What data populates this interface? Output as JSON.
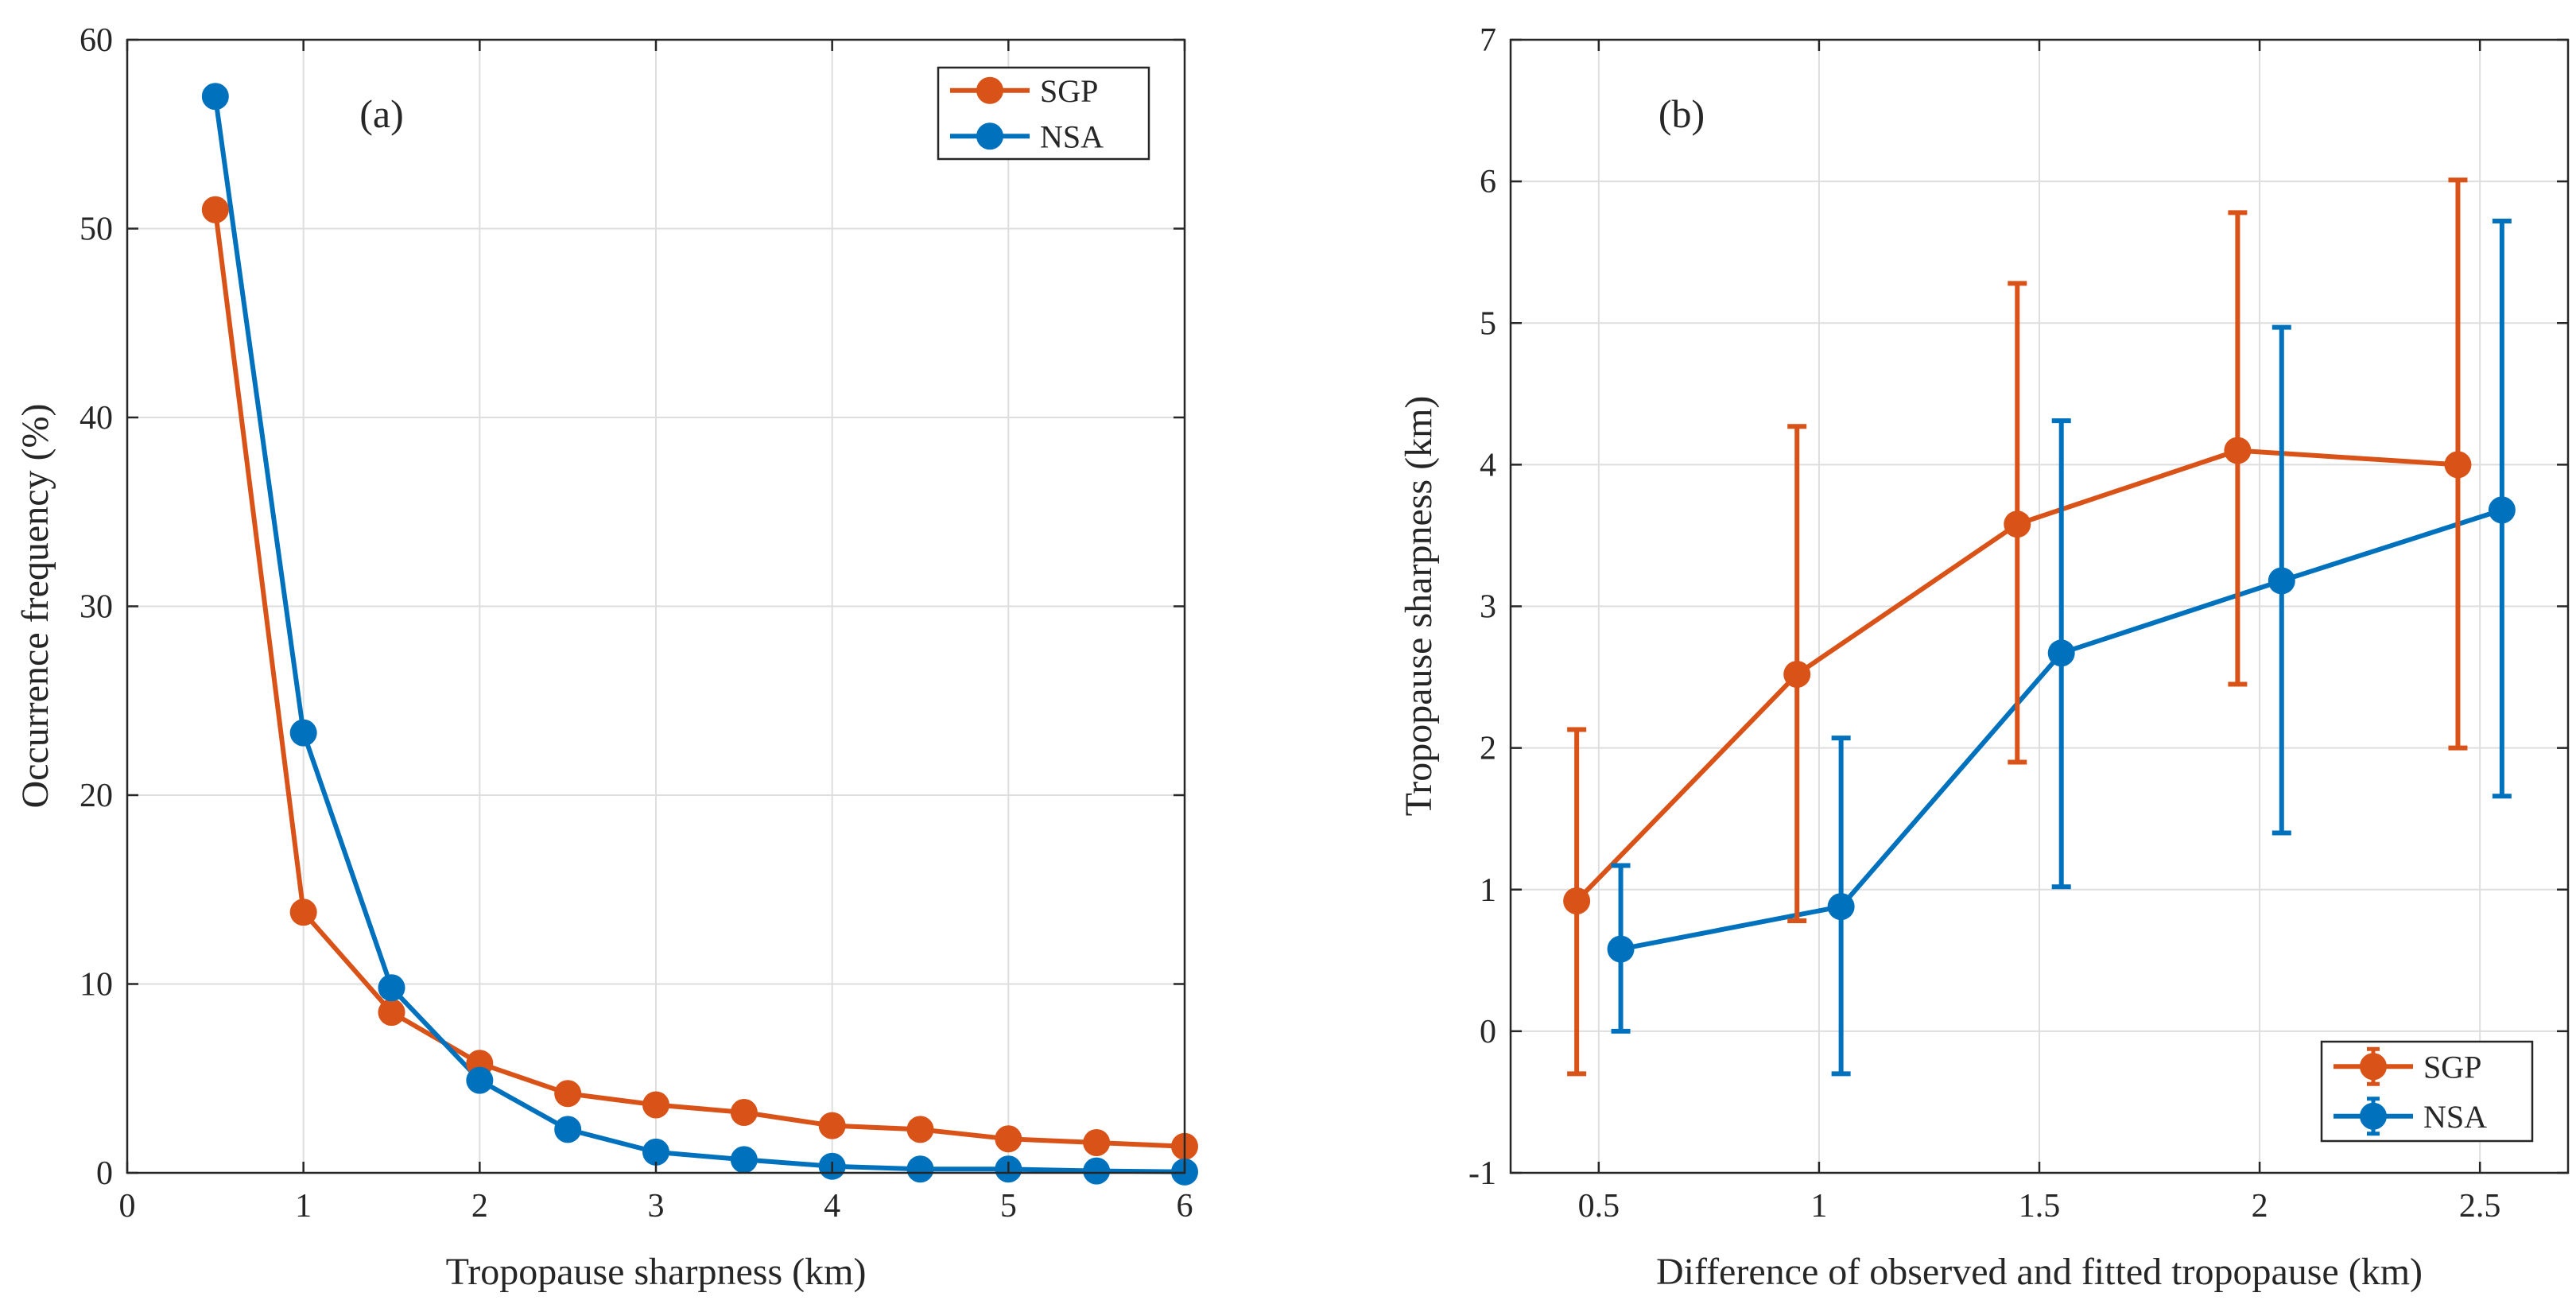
{
  "chart_data": [
    {
      "type": "line",
      "panel_label": "(a)",
      "xlabel": "Tropopause sharpness (km)",
      "ylabel": "Occurrence frequency (%)",
      "xlim": [
        0,
        6
      ],
      "ylim": [
        0,
        60
      ],
      "xticks": [
        0,
        1,
        2,
        3,
        4,
        5,
        6
      ],
      "yticks": [
        0,
        10,
        20,
        30,
        40,
        50,
        60
      ],
      "grid": true,
      "legend_position": "top-right",
      "series": [
        {
          "name": "SGP",
          "color": "#D95319",
          "x": [
            0.5,
            1.0,
            1.5,
            2.0,
            2.5,
            3.0,
            3.5,
            4.0,
            4.5,
            5.0,
            5.5,
            6.0
          ],
          "values": [
            51.0,
            13.8,
            8.5,
            5.8,
            4.2,
            3.6,
            3.2,
            2.5,
            2.3,
            1.8,
            1.6,
            1.4
          ]
        },
        {
          "name": "NSA",
          "color": "#0072BD",
          "x": [
            0.5,
            1.0,
            1.5,
            2.0,
            2.5,
            3.0,
            3.5,
            4.0,
            4.5,
            5.0,
            5.5,
            6.0
          ],
          "values": [
            57.0,
            23.3,
            9.8,
            4.9,
            2.3,
            1.1,
            0.7,
            0.35,
            0.2,
            0.2,
            0.1,
            0.05
          ]
        }
      ]
    },
    {
      "type": "line",
      "panel_label": "(b)",
      "xlabel": "Difference of observed and fitted tropopause (km)",
      "ylabel": "Tropopause sharpness (km)",
      "xlim": [
        0.3,
        2.7
      ],
      "ylim": [
        -1,
        7
      ],
      "xticks": [
        0.5,
        1,
        1.5,
        2,
        2.5
      ],
      "yticks": [
        -1,
        0,
        1,
        2,
        3,
        4,
        5,
        6,
        7
      ],
      "grid": true,
      "legend_position": "bottom-right",
      "error_bars": true,
      "series": [
        {
          "name": "SGP",
          "color": "#D95319",
          "x": [
            0.45,
            0.95,
            1.45,
            1.95,
            2.45
          ],
          "values": [
            0.92,
            2.52,
            3.58,
            4.1,
            4.0
          ],
          "err_low": [
            -0.3,
            0.78,
            1.9,
            2.45,
            2.0
          ],
          "err_high": [
            2.13,
            4.27,
            5.28,
            5.78,
            6.01
          ]
        },
        {
          "name": "NSA",
          "color": "#0072BD",
          "x": [
            0.55,
            1.05,
            1.55,
            2.05,
            2.55
          ],
          "values": [
            0.58,
            0.88,
            2.67,
            3.18,
            3.68
          ],
          "err_low": [
            0.0,
            -0.3,
            1.02,
            1.4,
            1.66
          ],
          "err_high": [
            1.17,
            2.07,
            4.31,
            4.97,
            5.72
          ]
        }
      ]
    }
  ]
}
